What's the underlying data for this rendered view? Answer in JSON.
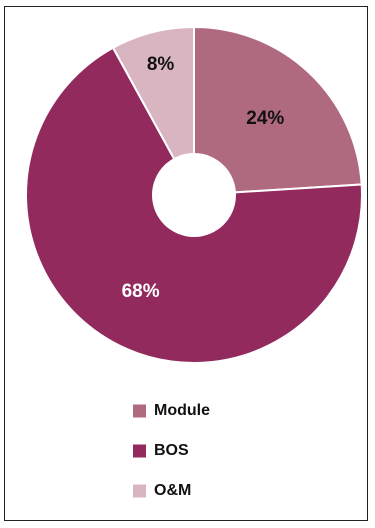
{
  "chart_data": {
    "type": "pie",
    "donut": true,
    "categories": [
      "Module",
      "BOS",
      "O&M"
    ],
    "values": [
      24,
      68,
      8
    ],
    "labels": [
      "24%",
      "68%",
      "8%"
    ],
    "colors": [
      "#b06a80",
      "#922a5e",
      "#d9b5c2"
    ],
    "label_colors": [
      "#111111",
      "#ffffff",
      "#111111"
    ],
    "legend_position": "bottom",
    "start_angle_deg": 0
  }
}
